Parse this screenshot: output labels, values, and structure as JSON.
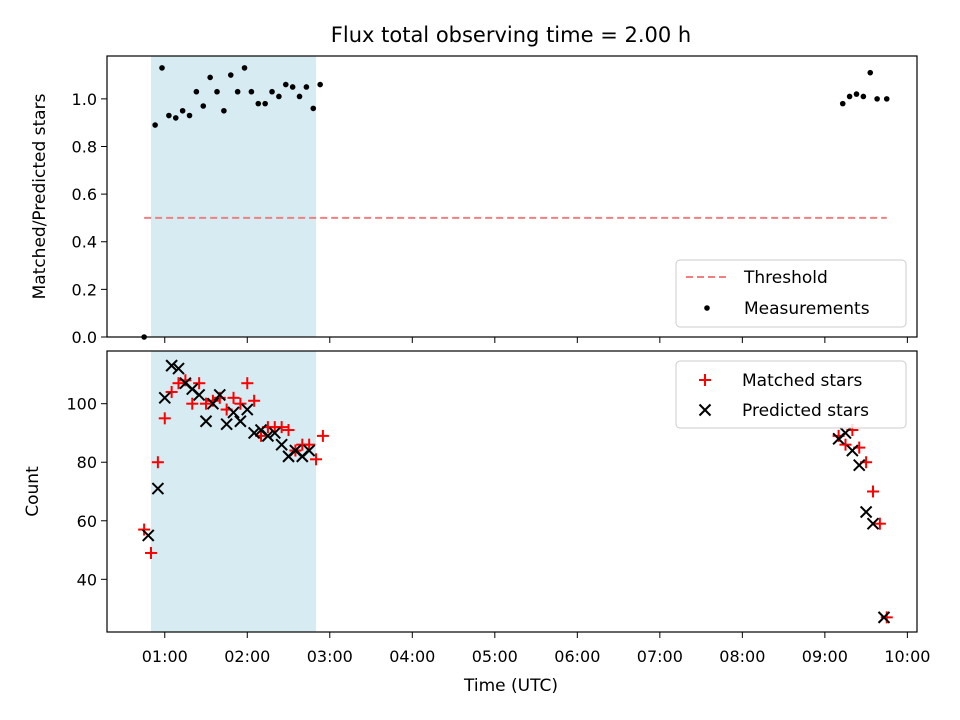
{
  "colors": {
    "threshold": "#f08080",
    "measurement": "#000000",
    "matched": "#ff0000",
    "predicted": "#000000",
    "span": "#add8e6"
  },
  "chart_data": [
    {
      "type": "scatter",
      "title": "Flux total observing time = 2.00 h",
      "xlabel": "",
      "ylabel": "Matched/Predicted stars",
      "ylim": [
        0,
        1.18
      ],
      "yticks": [
        0.0,
        0.2,
        0.4,
        0.6,
        0.8,
        1.0
      ],
      "ytick_labels": [
        "0.0",
        "0.2",
        "0.4",
        "0.6",
        "0.8",
        "1.0"
      ],
      "xlim": [
        "00:18",
        "10:07"
      ],
      "shaded_span": [
        "00:50",
        "02:50"
      ],
      "legend": {
        "position": "lower-right",
        "entries": [
          "Threshold",
          "Measurements"
        ]
      },
      "threshold": {
        "name": "Threshold",
        "y": 0.5,
        "x": [
          "00:45",
          "09:45"
        ]
      },
      "series": [
        {
          "name": "Measurements",
          "marker": "dot",
          "points": [
            [
              "00:45",
              0.0
            ],
            [
              "00:53",
              0.89
            ],
            [
              "00:58",
              1.13
            ],
            [
              "01:03",
              0.93
            ],
            [
              "01:08",
              0.92
            ],
            [
              "01:13",
              0.95
            ],
            [
              "01:18",
              0.93
            ],
            [
              "01:23",
              1.03
            ],
            [
              "01:28",
              0.97
            ],
            [
              "01:33",
              1.09
            ],
            [
              "01:38",
              1.03
            ],
            [
              "01:43",
              0.95
            ],
            [
              "01:48",
              1.1
            ],
            [
              "01:53",
              1.03
            ],
            [
              "01:58",
              1.13
            ],
            [
              "02:03",
              1.03
            ],
            [
              "02:08",
              0.98
            ],
            [
              "02:13",
              0.98
            ],
            [
              "02:18",
              1.03
            ],
            [
              "02:23",
              1.01
            ],
            [
              "02:28",
              1.06
            ],
            [
              "02:33",
              1.05
            ],
            [
              "02:38",
              1.01
            ],
            [
              "02:43",
              1.05
            ],
            [
              "02:48",
              0.96
            ],
            [
              "02:53",
              1.06
            ],
            [
              "09:13",
              0.98
            ],
            [
              "09:18",
              1.01
            ],
            [
              "09:23",
              1.02
            ],
            [
              "09:28",
              1.01
            ],
            [
              "09:33",
              1.11
            ],
            [
              "09:38",
              1.0
            ],
            [
              "09:45",
              1.0
            ]
          ]
        }
      ]
    },
    {
      "type": "scatter",
      "title": "",
      "xlabel": "Time (UTC)",
      "ylabel": "Count",
      "ylim": [
        22,
        118
      ],
      "yticks": [
        40,
        60,
        80,
        100
      ],
      "ytick_labels": [
        "40",
        "60",
        "80",
        "100"
      ],
      "xlim": [
        "00:18",
        "10:07"
      ],
      "xticks": [
        "01:00",
        "02:00",
        "03:00",
        "04:00",
        "05:00",
        "06:00",
        "07:00",
        "08:00",
        "09:00",
        "10:00"
      ],
      "shaded_span": [
        "00:50",
        "02:50"
      ],
      "legend": {
        "position": "upper-right",
        "entries": [
          "Matched stars",
          "Predicted stars"
        ]
      },
      "series": [
        {
          "name": "Matched stars",
          "marker": "plus",
          "points": [
            [
              "00:45",
              57
            ],
            [
              "00:50",
              49
            ],
            [
              "00:55",
              80
            ],
            [
              "01:00",
              95
            ],
            [
              "01:05",
              104
            ],
            [
              "01:10",
              107
            ],
            [
              "01:15",
              108
            ],
            [
              "01:20",
              100
            ],
            [
              "01:25",
              107
            ],
            [
              "01:30",
              100
            ],
            [
              "01:35",
              101
            ],
            [
              "01:40",
              102
            ],
            [
              "01:45",
              98
            ],
            [
              "01:50",
              102
            ],
            [
              "01:55",
              100
            ],
            [
              "02:00",
              107
            ],
            [
              "02:05",
              101
            ],
            [
              "02:10",
              89
            ],
            [
              "02:15",
              92
            ],
            [
              "02:20",
              92
            ],
            [
              "02:25",
              92
            ],
            [
              "02:30",
              91
            ],
            [
              "02:35",
              84
            ],
            [
              "02:40",
              86
            ],
            [
              "02:45",
              86
            ],
            [
              "02:50",
              81
            ],
            [
              "02:55",
              89
            ],
            [
              "09:10",
              89
            ],
            [
              "09:15",
              86
            ],
            [
              "09:20",
              91
            ],
            [
              "09:25",
              85
            ],
            [
              "09:30",
              80
            ],
            [
              "09:35",
              70
            ],
            [
              "09:40",
              59
            ],
            [
              "09:45",
              27
            ]
          ]
        },
        {
          "name": "Predicted stars",
          "marker": "x",
          "points": [
            [
              "00:48",
              55
            ],
            [
              "00:55",
              71
            ],
            [
              "01:00",
              102
            ],
            [
              "01:05",
              113
            ],
            [
              "01:10",
              112
            ],
            [
              "01:15",
              107
            ],
            [
              "01:20",
              105
            ],
            [
              "01:25",
              103
            ],
            [
              "01:30",
              94
            ],
            [
              "01:35",
              100
            ],
            [
              "01:40",
              103
            ],
            [
              "01:45",
              93
            ],
            [
              "01:50",
              97
            ],
            [
              "01:55",
              94
            ],
            [
              "02:00",
              98
            ],
            [
              "02:05",
              90
            ],
            [
              "02:10",
              91
            ],
            [
              "02:15",
              89
            ],
            [
              "02:20",
              90
            ],
            [
              "02:25",
              86
            ],
            [
              "02:30",
              82
            ],
            [
              "02:35",
              84
            ],
            [
              "02:40",
              82
            ],
            [
              "02:45",
              84
            ],
            [
              "09:10",
              88
            ],
            [
              "09:15",
              90
            ],
            [
              "09:20",
              84
            ],
            [
              "09:25",
              79
            ],
            [
              "09:30",
              63
            ],
            [
              "09:35",
              59
            ],
            [
              "09:43",
              27
            ]
          ]
        }
      ]
    }
  ]
}
